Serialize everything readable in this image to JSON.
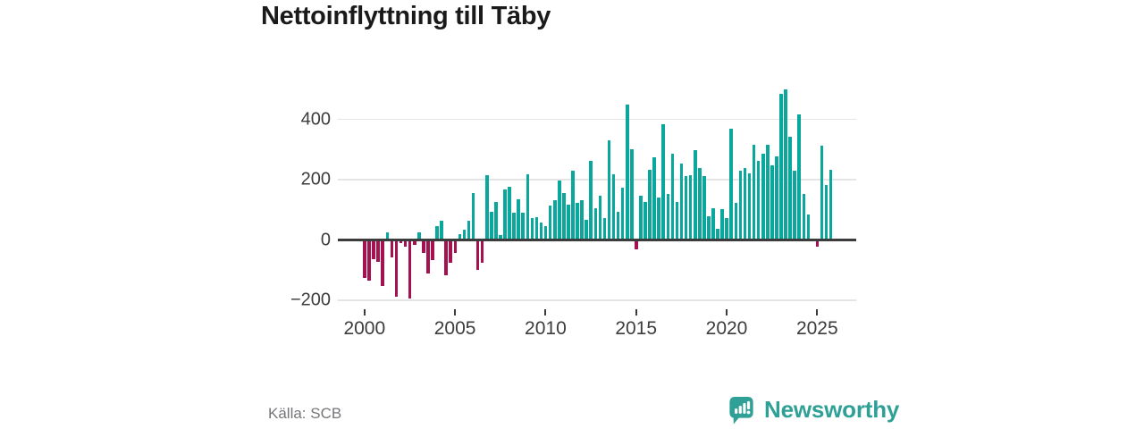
{
  "title": "Nettoinflyttning till Täby",
  "source": "Källa: SCB",
  "brand": {
    "name": "Newsworthy",
    "color": "#2fa096",
    "icon": "newsworthy-bar-chart-bubble-icon"
  },
  "chart_data": {
    "type": "bar",
    "title": "Nettoinflyttning till Täby",
    "frequency": "quarterly",
    "x_start": "2000Q1",
    "x_end": "2025Q4",
    "xlabel": "",
    "ylabel": "",
    "ylim": [
      -230,
      520
    ],
    "grid": "horizontal",
    "legend": "none",
    "x_tick_years": [
      2000,
      2005,
      2010,
      2015,
      2020,
      2025
    ],
    "x_tick_labels": [
      "2000",
      "2005",
      "2010",
      "2015",
      "2020",
      "2025"
    ],
    "y_ticks": [
      400,
      200,
      0,
      -200
    ],
    "y_tick_labels": [
      "400",
      "200",
      "0",
      "−200"
    ],
    "positive_color": "#0aa79c",
    "negative_color": "#a51251",
    "values": [
      -127,
      -136,
      -65,
      -74,
      -154,
      24,
      -59,
      -187,
      -10,
      -21,
      -193,
      -15,
      24,
      -44,
      -112,
      -67,
      47,
      65,
      -116,
      -77,
      -44,
      19,
      34,
      63,
      157,
      -100,
      -75,
      216,
      92,
      127,
      15,
      166,
      175,
      89,
      134,
      89,
      219,
      74,
      77,
      59,
      47,
      113,
      133,
      196,
      157,
      118,
      231,
      122,
      132,
      68,
      263,
      105,
      147,
      73,
      330,
      218,
      92,
      174,
      450,
      300,
      -30,
      147,
      127,
      233,
      273,
      142,
      385,
      152,
      285,
      125,
      253,
      213,
      216,
      298,
      240,
      213,
      80,
      104,
      36,
      101,
      74,
      368,
      124,
      230,
      240,
      222,
      317,
      263,
      285,
      315,
      246,
      276,
      483,
      498,
      342,
      231,
      417,
      154,
      85,
      5,
      -21,
      312,
      182,
      233
    ]
  }
}
